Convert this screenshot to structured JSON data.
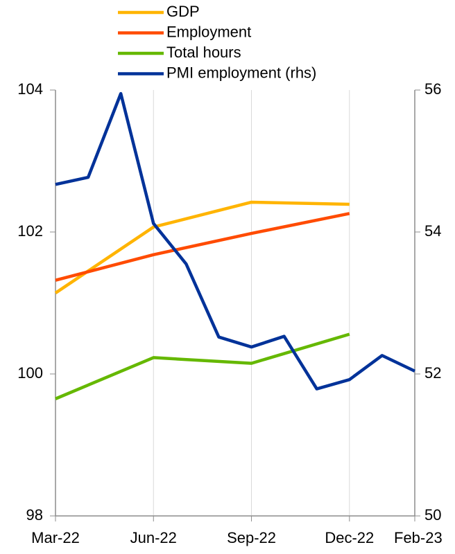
{
  "chart_data": {
    "type": "line",
    "categories": [
      "Mar-22",
      null,
      null,
      "Jun-22",
      null,
      null,
      "Sep-22",
      null,
      null,
      "Dec-22",
      null,
      "Feb-23"
    ],
    "series": [
      {
        "name": "GDP",
        "color": "#ffb400",
        "x": [
          "Mar-22",
          "Jun-22",
          "Sep-22",
          "Dec-22"
        ],
        "values": [
          101.14,
          102.07,
          102.42,
          102.39
        ]
      },
      {
        "name": "Employment",
        "color": "#ff4b00",
        "x": [
          "Mar-22",
          "Jun-22",
          "Sep-22",
          "Dec-22"
        ],
        "values": [
          101.32,
          101.68,
          101.98,
          102.26
        ]
      },
      {
        "name": "Total hours",
        "color": "#65b800",
        "x": [
          "Mar-22",
          "Jun-22",
          "Sep-22",
          "Dec-22"
        ],
        "values": [
          99.65,
          100.23,
          100.15,
          100.56
        ]
      },
      {
        "name": "PMI employment (rhs)",
        "color": "#003299",
        "axis": "y2",
        "values": [
          54.67,
          54.77,
          55.95,
          54.12,
          53.55,
          52.52,
          52.38,
          52.53,
          51.79,
          51.92,
          52.26,
          52.04
        ]
      }
    ],
    "ylim": [
      98,
      104
    ],
    "yticks": [
      98,
      100,
      102,
      104
    ],
    "y2lim": [
      50,
      56
    ],
    "y2ticks": [
      50,
      52,
      54,
      56
    ],
    "grid": "x"
  }
}
